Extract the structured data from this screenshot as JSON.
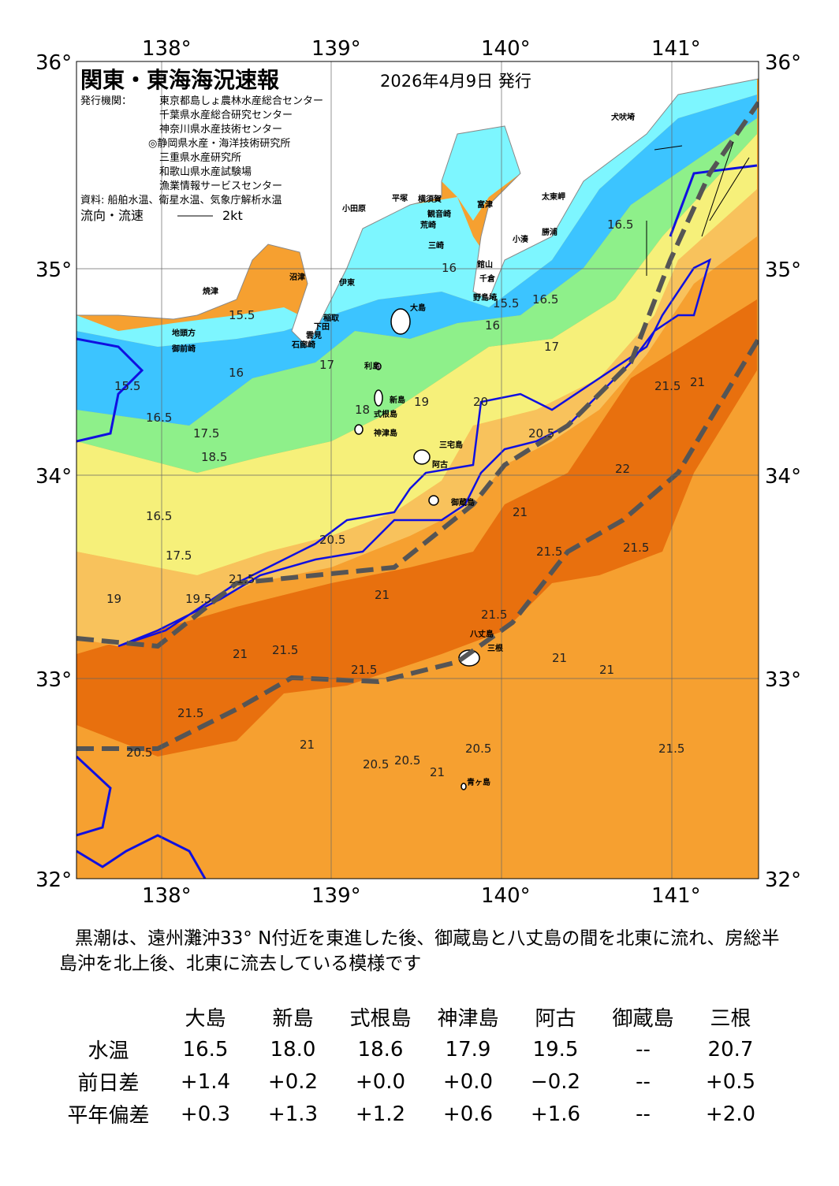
{
  "header": {
    "title": "関東・東海海況速報",
    "date": "2026年4月9日 発行",
    "issuer_label": "発行機関：",
    "issuers": [
      "東京都島しょ農林水産総合センター",
      "千葉県水産総合研究センター",
      "神奈川県水産技術センター",
      "◎静岡県水産・海洋技術研究所",
      "三重県水産研究所",
      "和歌山県水産試験場",
      "漁業情報サービスセンター"
    ],
    "source": "資料: 船舶水温、衛星水温、気象庁解析水温",
    "current_label": "流向・流速",
    "current_scale": "2kt"
  },
  "map": {
    "lon_ticks": [
      "138°",
      "139°",
      "140°",
      "141°"
    ],
    "lat_ticks": [
      "36°",
      "35°",
      "34°",
      "33°",
      "32°"
    ],
    "colors": {
      "land": "#ffffff",
      "t15": "#7df6ff",
      "t16": "#3cc4ff",
      "t17": "#8ef08a",
      "t18": "#f6f07a",
      "t19": "#f8c25c",
      "t20": "#f6a030",
      "t21": "#e8700e",
      "kuroshio": "#555555",
      "contour20": "#1010e0"
    },
    "places": [
      "犬吠埼",
      "太東岬",
      "勝浦",
      "小湊",
      "富津",
      "平塚",
      "横須賀",
      "観音崎",
      "荒崎",
      "三崎",
      "小田原",
      "館山",
      "千倉",
      "野島埼",
      "沼津",
      "伊東",
      "焼津",
      "稲取",
      "下田",
      "雲見",
      "石廊崎",
      "地頭方",
      "御前崎",
      "大島",
      "利島",
      "新島",
      "式根島",
      "神津島",
      "三宅島",
      "阿古",
      "御蔵島",
      "八丈島",
      "三根",
      "青ヶ島"
    ],
    "temp_labels": [
      "15.5",
      "16",
      "16.5",
      "15.5",
      "16",
      "16.5",
      "17",
      "17.5",
      "18.5",
      "16.5",
      "16",
      "15.5",
      "16.5",
      "17.5",
      "17",
      "18",
      "19",
      "20",
      "20.5",
      "21",
      "21.5",
      "21",
      "21.5",
      "20.5",
      "21.5",
      "21",
      "21.5",
      "21",
      "21.5",
      "20.5",
      "20.5",
      "20.5",
      "21",
      "21",
      "21",
      "21.5",
      "21.5",
      "22",
      "21.5",
      "19.5",
      "19",
      "21.5",
      "21",
      "20.5"
    ]
  },
  "summary": "黒潮は、遠州灘沖33° N付近を東進した後、御蔵島と八丈島の間を北東に流れ、房総半島沖を北上後、北東に流去している模様です",
  "table": {
    "columns": [
      "大島",
      "新島",
      "式根島",
      "神津島",
      "阿古",
      "御蔵島",
      "三根"
    ],
    "rows": [
      {
        "label": "水温",
        "values": [
          "16.5",
          "18.0",
          "18.6",
          "17.9",
          "19.5",
          "--",
          "20.7"
        ]
      },
      {
        "label": "前日差",
        "values": [
          "+1.4",
          "+0.2",
          "+0.0",
          "+0.0",
          "−0.2",
          "--",
          "+0.5"
        ]
      },
      {
        "label": "平年偏差",
        "values": [
          "+0.3",
          "+1.3",
          "+1.2",
          "+0.6",
          "+1.6",
          "--",
          "+2.0"
        ]
      }
    ]
  }
}
